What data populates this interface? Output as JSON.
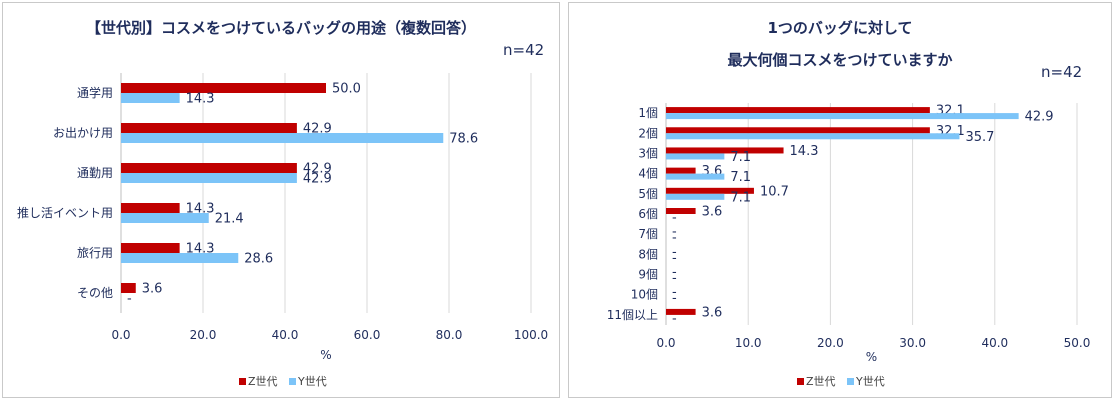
{
  "colors": {
    "z": "#C00000",
    "y": "#7CC4F8",
    "grid": "#d9d9d9",
    "axis": "#bfbfbf",
    "text": "#1f2d5c"
  },
  "chart_data": [
    {
      "type": "bar",
      "orientation": "horizontal",
      "title": "【世代別】コスメをつけているバッグの用途（複数回答）",
      "note": "n=42",
      "categories": [
        "通学用",
        "お出かけ用",
        "通勤用",
        "推し活イベント用",
        "旅行用",
        "その他"
      ],
      "series": [
        {
          "name": "Z世代",
          "values": [
            50.0,
            42.9,
            42.9,
            14.3,
            14.3,
            3.6
          ],
          "labels": [
            "50.0",
            "42.9",
            "42.9",
            "14.3",
            "14.3",
            "3.6"
          ]
        },
        {
          "name": "Y世代",
          "values": [
            14.3,
            78.6,
            42.9,
            21.4,
            28.6,
            0
          ],
          "labels": [
            "14.3",
            "78.6",
            "42.9",
            "21.4",
            "28.6",
            "-"
          ]
        }
      ],
      "xlabel": "%",
      "xlim": [
        0,
        100
      ],
      "ticks": [
        "0.0",
        "20.0",
        "40.0",
        "60.0",
        "80.0",
        "100.0"
      ],
      "grid": true,
      "legend": "bottom"
    },
    {
      "type": "bar",
      "orientation": "horizontal",
      "title": "1つのバッグに対して",
      "subtitle": "最大何個コスメをつけていますか",
      "note": "n=42",
      "categories": [
        "1個",
        "2個",
        "3個",
        "4個",
        "5個",
        "6個",
        "7個",
        "8個",
        "9個",
        "10個",
        "11個以上"
      ],
      "series": [
        {
          "name": "Z世代",
          "values": [
            32.1,
            32.1,
            14.3,
            3.6,
            10.7,
            3.6,
            0,
            0,
            0,
            0,
            3.6
          ],
          "labels": [
            "32.1",
            "32.1",
            "14.3",
            "3.6",
            "10.7",
            "3.6",
            "-",
            "-",
            "-",
            "-",
            "3.6"
          ]
        },
        {
          "name": "Y世代",
          "values": [
            42.9,
            35.7,
            7.1,
            7.1,
            7.1,
            0,
            0,
            0,
            0,
            0,
            0
          ],
          "labels": [
            "42.9",
            "35.7",
            "7.1",
            "7.1",
            "7.1",
            "-",
            "-",
            "-",
            "-",
            "-",
            "-"
          ]
        }
      ],
      "xlabel": "%",
      "xlim": [
        0,
        50
      ],
      "ticks": [
        "0.0",
        "10.0",
        "20.0",
        "30.0",
        "40.0",
        "50.0"
      ],
      "grid": true,
      "legend": "bottom"
    }
  ]
}
